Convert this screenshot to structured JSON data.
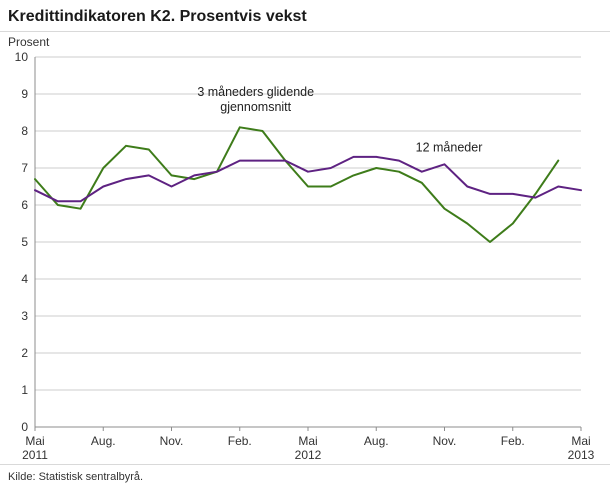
{
  "header": {
    "title": "Kredittindikatoren K2. Prosentvis vekst"
  },
  "footer": {
    "source": "Kilde: Statistisk sentralbyrå."
  },
  "colors": {
    "grid": "#cccccc",
    "axis": "#8c8c8c",
    "tick_text": "#333333",
    "annotation_text": "#222222",
    "series_green": "#3e7c1a",
    "series_purple": "#5e2282"
  },
  "chart_data": {
    "type": "line",
    "title": "Kredittindikatoren K2. Prosentvis vekst",
    "xlabel": "",
    "ylabel": "Prosent",
    "ylim": [
      0,
      10
    ],
    "y_ticks": [
      0,
      1,
      2,
      3,
      4,
      5,
      6,
      7,
      8,
      9,
      10
    ],
    "grid": true,
    "legend_position": "inline-annotations",
    "x_count": 25,
    "x_ticks": [
      {
        "index": 0,
        "label": "Mai",
        "sublabel": "2011"
      },
      {
        "index": 3,
        "label": "Aug."
      },
      {
        "index": 6,
        "label": "Nov."
      },
      {
        "index": 9,
        "label": "Feb."
      },
      {
        "index": 12,
        "label": "Mai",
        "sublabel": "2012"
      },
      {
        "index": 15,
        "label": "Aug."
      },
      {
        "index": 18,
        "label": "Nov."
      },
      {
        "index": 21,
        "label": "Feb."
      },
      {
        "index": 24,
        "label": "Mai",
        "sublabel": "2013"
      }
    ],
    "series": [
      {
        "name": "3 måneders glidende gjennomsnitt",
        "color": "#3e7c1a",
        "values": [
          6.7,
          6.0,
          5.9,
          7.0,
          7.6,
          7.5,
          6.8,
          6.7,
          6.9,
          8.1,
          8.0,
          7.2,
          6.5,
          6.5,
          6.8,
          7.0,
          6.9,
          6.6,
          5.9,
          5.5,
          5.0,
          5.5,
          6.3,
          7.2,
          null
        ]
      },
      {
        "name": "12 måneder",
        "color": "#5e2282",
        "values": [
          6.4,
          6.1,
          6.1,
          6.5,
          6.7,
          6.8,
          6.5,
          6.8,
          6.9,
          7.2,
          7.2,
          7.2,
          6.9,
          7.0,
          7.3,
          7.3,
          7.2,
          6.9,
          7.1,
          6.5,
          6.3,
          6.3,
          6.2,
          6.5,
          6.4
        ]
      }
    ],
    "annotations": [
      {
        "lines": [
          "3 måneders glidende",
          "gjennomsnitt"
        ],
        "x": 9.7,
        "y": 8.95,
        "for_series": "3 måneders glidende gjennomsnitt"
      },
      {
        "lines": [
          "12 måneder"
        ],
        "x": 18.2,
        "y": 7.45,
        "for_series": "12 måneder"
      }
    ]
  }
}
